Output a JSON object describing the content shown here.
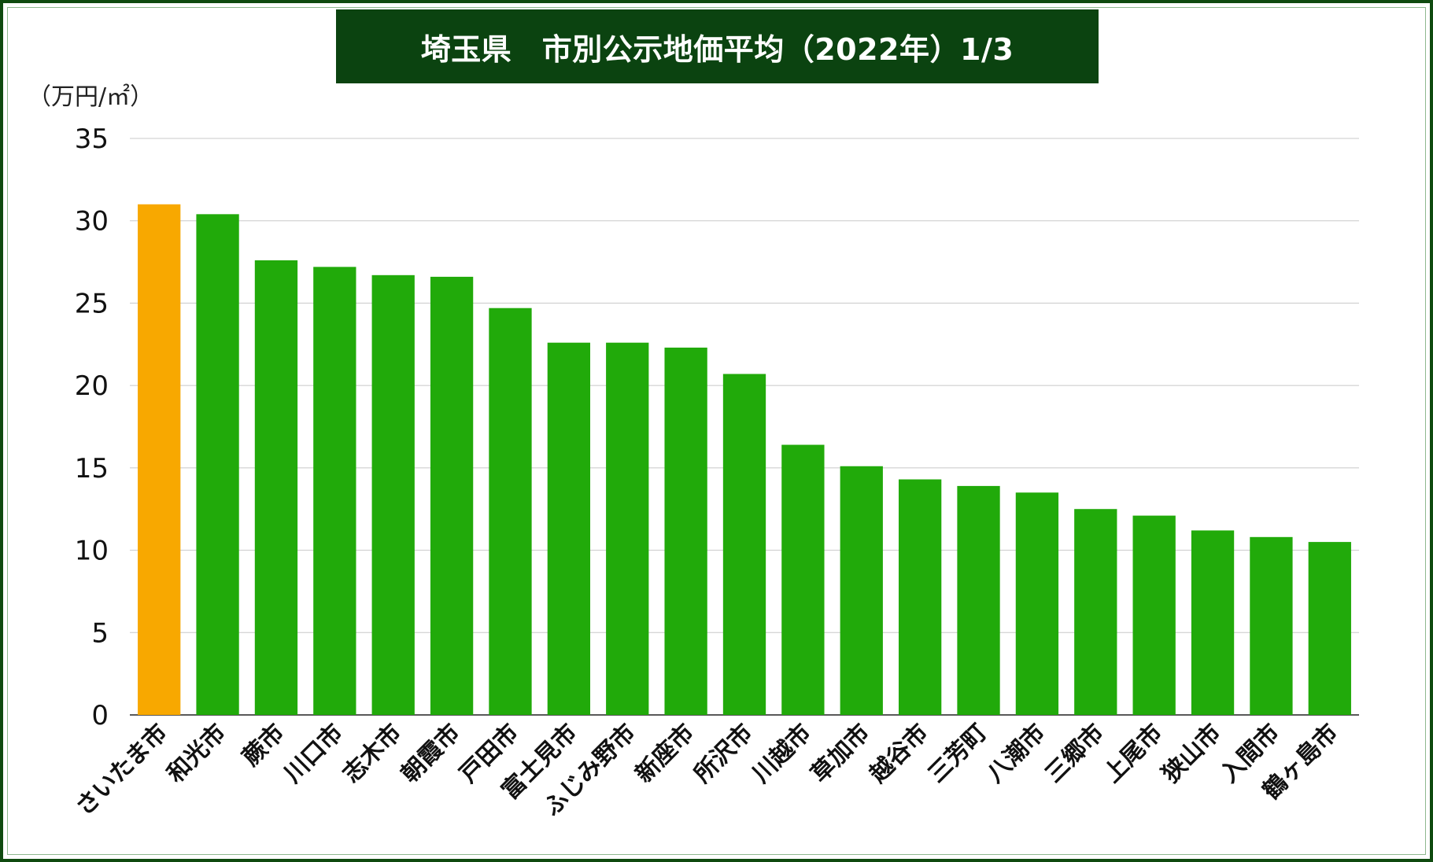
{
  "colors": {
    "frame": "#0f4a0f",
    "title_bg": "#0b4310",
    "title_text": "#ffffff",
    "highlight_bar": "#f8a800",
    "bar": "#21aa0a",
    "grid": "#c8c8c8"
  },
  "chart_data": {
    "type": "bar",
    "title": "埼玉県　市別公示地価平均（2022年）1/3",
    "ylabel": "（万円/㎡）",
    "xlabel": "",
    "ylim": [
      0,
      35
    ],
    "yticks": [
      0,
      5,
      10,
      15,
      20,
      25,
      30,
      35
    ],
    "grid": true,
    "legend": "none",
    "highlight_index": 0,
    "categories": [
      "さいたま市",
      "和光市",
      "蕨市",
      "川口市",
      "志木市",
      "朝霞市",
      "戸田市",
      "富士見市",
      "ふじみ野市",
      "新座市",
      "所沢市",
      "川越市",
      "草加市",
      "越谷市",
      "三芳町",
      "八潮市",
      "三郷市",
      "上尾市",
      "狭山市",
      "入間市",
      "鶴ヶ島市"
    ],
    "values": [
      31.0,
      30.4,
      27.6,
      27.2,
      26.7,
      26.6,
      24.7,
      22.6,
      22.6,
      22.3,
      20.7,
      16.4,
      15.1,
      14.3,
      13.9,
      13.5,
      12.5,
      12.1,
      11.2,
      10.8,
      10.5
    ]
  }
}
